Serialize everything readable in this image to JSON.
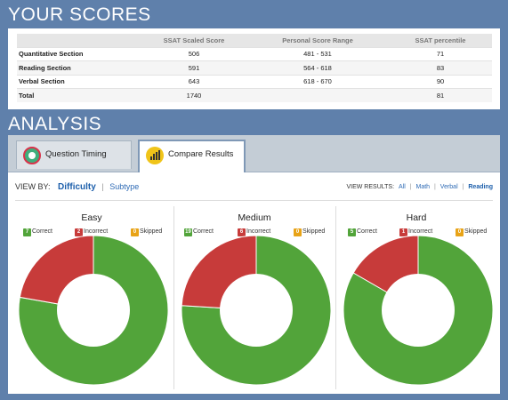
{
  "scores": {
    "title": "YOUR SCORES",
    "headers": [
      "",
      "SSAT Scaled Score",
      "Personal Score Range",
      "SSAT percentile"
    ],
    "rows": [
      {
        "label": "Quantitative Section",
        "scaled": "506",
        "range": "481 - 531",
        "percentile": "71"
      },
      {
        "label": "Reading Section",
        "scaled": "591",
        "range": "564 - 618",
        "percentile": "83"
      },
      {
        "label": "Verbal Section",
        "scaled": "643",
        "range": "618 - 670",
        "percentile": "90"
      },
      {
        "label": "Total",
        "scaled": "1740",
        "range": "",
        "percentile": "81"
      }
    ]
  },
  "analysis": {
    "title": "ANALYSIS",
    "tabs": [
      {
        "label": "Question Timing",
        "icon": "clock-icon"
      },
      {
        "label": "Compare Results",
        "icon": "bar-chart-icon"
      }
    ],
    "view_by": {
      "label": "VIEW BY:",
      "options": [
        "Difficulty",
        "Subtype"
      ],
      "selected": "Difficulty"
    },
    "view_results": {
      "label": "VIEW RESULTS:",
      "options": [
        "All",
        "Math",
        "Verbal",
        "Reading"
      ],
      "selected": "Reading"
    }
  },
  "colors": {
    "correct": "#52a43a",
    "incorrect": "#c73b3a",
    "skipped": "#e8a317"
  },
  "chart_data": [
    {
      "type": "pie",
      "title": "Easy",
      "categories": [
        "Correct",
        "Incorrect",
        "Skipped"
      ],
      "values": [
        7,
        2,
        0
      ]
    },
    {
      "type": "pie",
      "title": "Medium",
      "categories": [
        "Correct",
        "Incorrect",
        "Skipped"
      ],
      "values": [
        19,
        6,
        0
      ]
    },
    {
      "type": "pie",
      "title": "Hard",
      "categories": [
        "Correct",
        "Incorrect",
        "Skipped"
      ],
      "values": [
        5,
        1,
        0
      ]
    }
  ]
}
